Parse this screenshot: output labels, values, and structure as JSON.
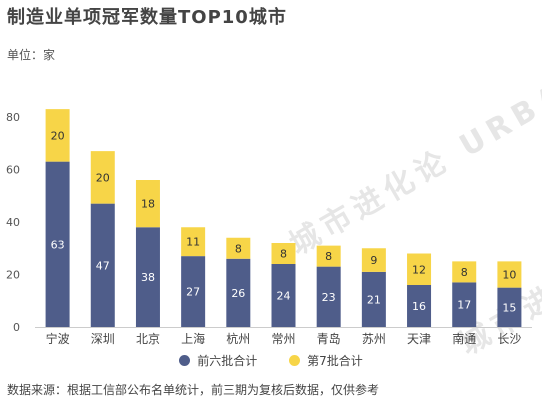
{
  "title": "制造业单项冠军数量TOP10城市",
  "unit_label": "单位：家",
  "watermark": "城市进化论 URBAN EVOLUTION",
  "source": "数据来源：根据工信部公布名单统计，前三期为复核后数据，仅供参考",
  "colors": {
    "series1": "#4f5d8a",
    "series2": "#f7d548"
  },
  "chart_data": {
    "type": "bar",
    "stacked": true,
    "title": "制造业单项冠军数量TOP10城市",
    "categories": [
      "宁波",
      "深圳",
      "北京",
      "上海",
      "杭州",
      "常州",
      "青岛",
      "苏州",
      "天津",
      "南通",
      "长沙"
    ],
    "series": [
      {
        "name": "前六批合计",
        "values": [
          63,
          47,
          38,
          27,
          26,
          24,
          23,
          21,
          16,
          17,
          15
        ]
      },
      {
        "name": "第7批合计",
        "values": [
          20,
          20,
          18,
          11,
          8,
          8,
          8,
          9,
          12,
          8,
          10
        ]
      }
    ],
    "ylim": [
      0,
      80
    ],
    "yticks": [
      0,
      20,
      40,
      60,
      80
    ],
    "grid": false,
    "legend": "bottom"
  }
}
